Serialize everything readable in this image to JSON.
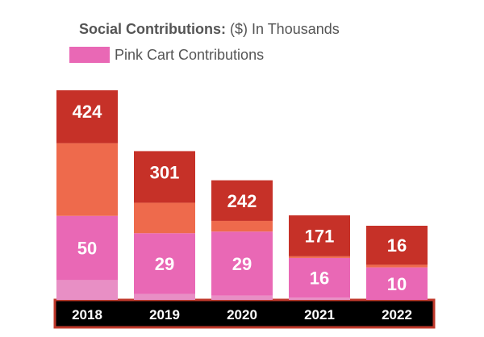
{
  "chart_data": {
    "type": "bar",
    "title_bold": "Social Contributions:",
    "title_rest": " ($) In Thousands",
    "legend": [
      {
        "label": "Pink Cart Contributions",
        "color": "#e968b5"
      }
    ],
    "categories": [
      "2018",
      "2019",
      "2020",
      "2021",
      "2022"
    ],
    "series": [
      {
        "name": "Pink Cart Contributions",
        "values": [
          50,
          29,
          29,
          16,
          10
        ],
        "color": "#e968b5"
      }
    ],
    "totals": [
      424,
      301,
      242,
      171,
      16
    ],
    "stack_shares": {
      "bottom_light": [
        0.0947,
        0.0403,
        0.0357,
        0.0261,
        0.0
      ],
      "pink": [
        0.3063,
        0.4081,
        0.5357,
        0.4706,
        0.4386
      ],
      "orange": [
        0.3468,
        0.2047,
        0.0893,
        0.0196,
        0.0351
      ],
      "red": [
        0.2523,
        0.3468,
        0.3393,
        0.4837,
        0.5263
      ]
    },
    "stack_colors": {
      "bottom_light": "#e88fc5",
      "pink": "#e968b5",
      "orange": "#ee6a4c",
      "red": "#c63128"
    },
    "axis_colors": {
      "band": "#000000",
      "border": "#c0392b",
      "tick_text": "#ffffff"
    }
  }
}
